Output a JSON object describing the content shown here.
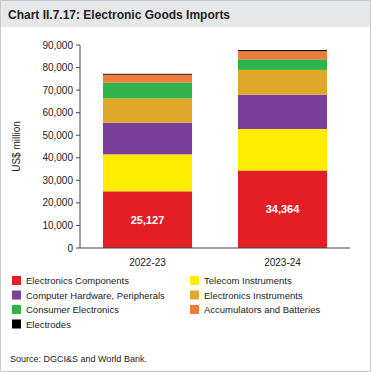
{
  "chart_data": {
    "type": "bar",
    "stacked": true,
    "title": "Chart II.7.17: Electronic Goods Imports",
    "y_label": "US$ million",
    "source": "Source: DGCI&S and World Bank.",
    "categories": [
      "2022-23",
      "2023-24"
    ],
    "series": [
      {
        "name": "Electronics Components",
        "color": "#e31e24",
        "values": [
          25127,
          34364
        ],
        "value_labels": [
          "25,127",
          "34,364"
        ],
        "data_labels": true
      },
      {
        "name": "Telecom Instruments",
        "color": "#ffec00",
        "values": [
          16400,
          18400
        ]
      },
      {
        "name": "Computer Hardware, Peripherals",
        "color": "#7a3f98",
        "values": [
          14000,
          15200
        ]
      },
      {
        "name": "Electronics Instruments",
        "color": "#dea829",
        "values": [
          10800,
          11000
        ]
      },
      {
        "name": "Consumer Electronics",
        "color": "#2fb34a",
        "values": [
          7000,
          4700
        ]
      },
      {
        "name": "Accumulators and Batteries",
        "color": "#f07c3c",
        "values": [
          3500,
          3600
        ]
      },
      {
        "name": "Electrodes",
        "color": "#000000",
        "values": [
          400,
          500
        ]
      }
    ],
    "ylim": [
      0,
      90000
    ],
    "yticks": [
      0,
      {
        "value": 10000,
        "label": "10,000"
      },
      {
        "value": 20000,
        "label": "20,000"
      },
      {
        "value": 30000,
        "label": "30,000"
      },
      {
        "value": 40000,
        "label": "40,000"
      },
      {
        "value": 50000,
        "label": "50,000"
      },
      {
        "value": 60000,
        "label": "60,000"
      },
      {
        "value": 70000,
        "label": "70,000"
      },
      {
        "value": 80000,
        "label": "80,000"
      },
      {
        "value": 90000,
        "label": "90,000"
      }
    ],
    "grid": false,
    "legend": "bottom"
  }
}
